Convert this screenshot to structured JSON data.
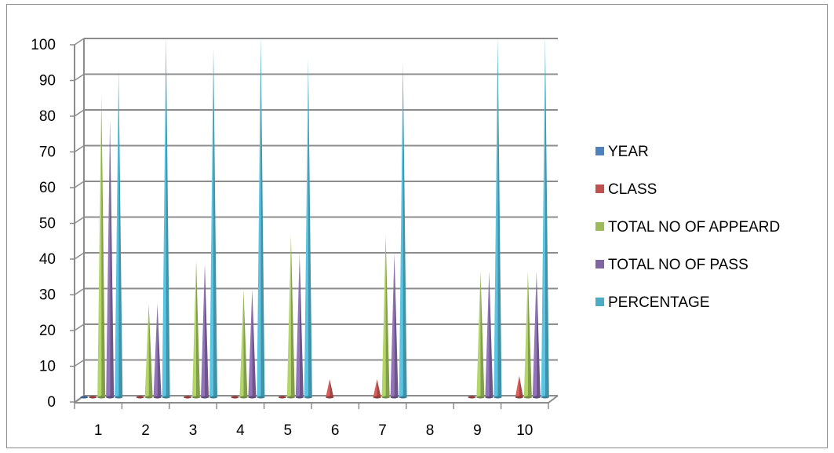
{
  "chart_data": {
    "type": "bar",
    "style": "3d-cone",
    "title": "",
    "xlabel": "",
    "ylabel": "",
    "ylim": [
      0,
      100
    ],
    "ytick_step": 10,
    "grid": true,
    "legend_position": "right",
    "categories": [
      "1",
      "2",
      "3",
      "4",
      "5",
      "6",
      "7",
      "8",
      "9",
      "10"
    ],
    "series": [
      {
        "name": "YEAR",
        "color": "#4f81bd",
        "values": [
          0.5,
          0,
          0,
          0,
          0,
          0,
          0,
          0,
          0,
          0
        ]
      },
      {
        "name": "CLASS",
        "color": "#c0504d",
        "values": [
          0.5,
          0.5,
          0.5,
          0.5,
          0.5,
          5,
          5,
          0,
          0.5,
          6
        ]
      },
      {
        "name": "TOTAL NO OF APPEARD",
        "color": "#9bbb59",
        "values": [
          84,
          26,
          38,
          30,
          45,
          0,
          45,
          0,
          35,
          35
        ]
      },
      {
        "name": "TOTAL NO OF PASS",
        "color": "#8064a2",
        "values": [
          77,
          26,
          37,
          30,
          40,
          0,
          40,
          0,
          35,
          35
        ]
      },
      {
        "name": "PERCENTAGE",
        "color": "#4bacc6",
        "values": [
          91,
          100,
          97,
          100,
          94,
          0,
          93,
          0,
          100,
          100
        ]
      }
    ]
  }
}
